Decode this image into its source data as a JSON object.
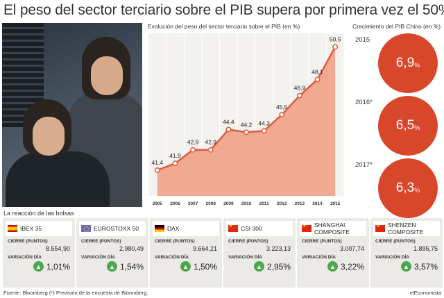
{
  "headline": "El peso del sector terciario sobre el PIB supera por primera vez el 50%",
  "chart_data": [
    {
      "type": "area",
      "title": "Evolución del peso del sector terciario sobre el PIB (en %)",
      "categories": [
        "2005",
        "2006",
        "2007",
        "2008",
        "2009",
        "2010",
        "2011",
        "2012",
        "2013",
        "2014",
        "2015"
      ],
      "values": [
        41.4,
        41.9,
        42.9,
        42.9,
        44.4,
        44.2,
        44.3,
        45.5,
        46.9,
        48.1,
        50.5
      ],
      "value_labels": [
        "41,4",
        "41,9",
        "42,9",
        "42,9",
        "44,4",
        "44,2",
        "44,3",
        "45,5",
        "46,9",
        "48,1",
        "50,5"
      ],
      "ylim": [
        39.5,
        51.5
      ],
      "grid": "vertical",
      "line_color": "#e05a3a",
      "fill_color": "#f0a58c"
    },
    {
      "type": "bubble",
      "title": "Crecimiento del PIB Chino (en %)",
      "categories": [
        "2015",
        "2016*",
        "2017*"
      ],
      "values": [
        6.9,
        6.5,
        6.3
      ],
      "value_labels": [
        {
          "main": "6,9",
          "unit": "%"
        },
        {
          "main": "6,5",
          "unit": "%"
        },
        {
          "main": "6,3",
          "unit": "%"
        }
      ],
      "color": "#d9472b"
    }
  ],
  "markets": {
    "title": "La reacción de las bolsas",
    "close_label": "CIERRE (PUNTOS)",
    "var_label": "VARIACIÓN DÍA",
    "items": [
      {
        "name": "IBEX 35",
        "flag": "es",
        "close": "8.554,90",
        "var": "1,01%"
      },
      {
        "name": "EUROSTOXX 50",
        "flag": "eu",
        "close": "2.980,49",
        "var": "1,54%"
      },
      {
        "name": "DAX",
        "flag": "de",
        "close": "9.664,21",
        "var": "1,50%"
      },
      {
        "name": "CSI 300",
        "flag": "cn",
        "close": "3.223,13",
        "var": "2,95%"
      },
      {
        "name": "SHANGHAI COMPOSITE",
        "flag": "cn",
        "close": "3.007,74",
        "var": "3,22%"
      },
      {
        "name": "SHENZEN COMPOSITE",
        "flag": "cn",
        "close": "1.895,75",
        "var": "3,57%"
      }
    ]
  },
  "footer": {
    "source": "Fuente: Bloomberg (*) Previsión de la encuesta de Bloomberg.",
    "brand": "elEconomista"
  }
}
